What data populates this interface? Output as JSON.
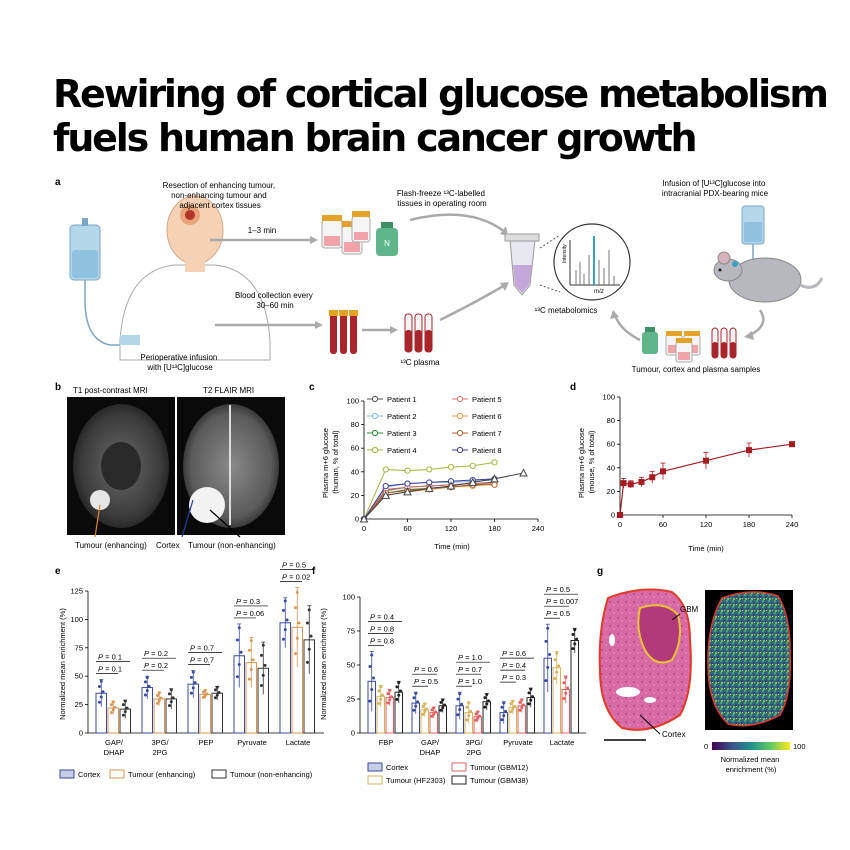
{
  "title": {
    "line1": "Rewiring of cortical glucose metabolism",
    "line2": "fuels human brain cancer growth"
  },
  "panel_a": {
    "letter": "a",
    "resection": [
      "Resection of enhancing tumour,",
      "non-enhancing tumour and",
      "adjacent cortex tissues"
    ],
    "time1": "1–3 min",
    "n2": "N",
    "flash": [
      "Flash-freeze ¹³C-labelled",
      "tissues in operating room"
    ],
    "blood": [
      "Blood collection every",
      "30–60 min"
    ],
    "plasma": "¹³C plasma",
    "metabolomics": "¹³C metabolomics",
    "intensity": "Intensity",
    "mz": "m/z",
    "infusion_mice": [
      "Infusion of [U¹³C]glucose into",
      "intracranial PDX-bearing mice"
    ],
    "periop": [
      "Perioperative infusion",
      "with [U¹³C]glucose"
    ],
    "samples": "Tumour, cortex and plasma samples",
    "colors": {
      "tube_cap": "#e3a22a",
      "blood": "#a8262b",
      "tissue_pink": "#f0a3a9",
      "bottle_green": "#5fb58a",
      "skin": "#f5d2b5",
      "bag_blue": "#b5d7ea"
    }
  },
  "panel_b": {
    "letter": "b",
    "mri1": "T1 post-contrast MRI",
    "mri2": "T2 FLAIR MRI",
    "lab_enh": "Tumour (enhancing)",
    "lab_cortex": "Cortex",
    "lab_non": "Tumour (non-enhancing)"
  },
  "panel_c": {
    "letter": "c",
    "ylabel": [
      "Plasma m+6 glucose",
      "(human, % of total)"
    ],
    "xlabel": "Time (min)",
    "yticks": [
      "0",
      "20",
      "40",
      "60",
      "80",
      "100"
    ],
    "xticks": [
      "0",
      "60",
      "120",
      "180",
      "240"
    ],
    "legend": [
      "Patient 1",
      "Patient 2",
      "Patient 3",
      "Patient 4",
      "Patient 5",
      "Patient 6",
      "Patient 7",
      "Patient 8"
    ]
  },
  "panel_d": {
    "letter": "d",
    "ylabel": [
      "Plasma m+6 glucose",
      "(mouse, % of total)"
    ],
    "xlabel": "Time (min)",
    "yticks": [
      "0",
      "20",
      "40",
      "60",
      "80",
      "100"
    ],
    "xticks": [
      "0",
      "60",
      "120",
      "180",
      "240"
    ]
  },
  "panel_e": {
    "letter": "e",
    "ylabel": "Normalized mean enrichment (%)",
    "yticks": [
      "0",
      "25",
      "50",
      "75",
      "100",
      "125"
    ],
    "categories": [
      "GAP/\nDHAP",
      "3PG/\n2PG",
      "PEP",
      "Pyruvate",
      "Lactate"
    ],
    "pvalues": [
      [
        "P = 0.1",
        "P = 0.1"
      ],
      [
        "P = 0.2",
        "P = 0.2"
      ],
      [
        "P = 0.7",
        "P = 0.7"
      ],
      [
        "P = 0.06",
        "P = 0.3"
      ],
      [
        "P = 0.02",
        "P = 0.5"
      ]
    ],
    "legend": [
      "Cortex",
      "Tumour (enhancing)",
      "Tumour (non-enhancing)"
    ]
  },
  "panel_f": {
    "letter": "f",
    "ylabel": "Normalized mean enrichment (%)",
    "yticks": [
      "0",
      "25",
      "50",
      "75",
      "100"
    ],
    "categories": [
      "FBP",
      "GAP/\nDHAP",
      "3PG/\n2PG",
      "Pyruvate",
      "Lactate"
    ],
    "pvalues": [
      [
        "P = 0.8",
        "P = 0.8",
        "P = 0.4"
      ],
      [
        "P = 0.5",
        "P = 0.6"
      ],
      [
        "P = 1.0",
        "P = 0.7",
        "P = 1.0"
      ],
      [
        "P = 0.3",
        "P = 0.4",
        "P = 0.6"
      ],
      [
        "P = 0.5",
        "P = 0.007",
        "P = 0.5"
      ]
    ],
    "legend": [
      "Cortex",
      "Tumour (GBM12)",
      "Tumour (HF2303)",
      "Tumour (GBM38)"
    ]
  },
  "panel_g": {
    "letter": "g",
    "gbm": "GBM",
    "cortex": "Cortex",
    "cb_min": "0",
    "cb_max": "100",
    "cb_label": [
      "Normalized mean",
      "enrichment (%)"
    ]
  },
  "chart_data": [
    {
      "type": "line",
      "panel": "c",
      "xlabel": "Time (min)",
      "ylabel": "Plasma m+6 glucose (human, % of total)",
      "xlim": [
        0,
        240
      ],
      "ylim": [
        0,
        100
      ],
      "series": [
        {
          "name": "Patient 1",
          "color": "#555555",
          "marker": "circle",
          "x": [
            0,
            30,
            60,
            90,
            120,
            150,
            180
          ],
          "y": [
            0,
            24,
            27,
            28,
            29,
            30,
            31
          ]
        },
        {
          "name": "Patient 2",
          "color": "#7fb8dc",
          "marker": "circle",
          "x": [
            0,
            30,
            60,
            90,
            120,
            150,
            180
          ],
          "y": [
            0,
            27,
            30,
            31,
            31,
            32,
            33
          ]
        },
        {
          "name": "Patient 3",
          "color": "#2e8b3e",
          "marker": "circle",
          "x": [
            0,
            30,
            60,
            90,
            120,
            150,
            180
          ],
          "y": [
            0,
            22,
            25,
            26,
            27,
            29,
            30
          ]
        },
        {
          "name": "Patient 4",
          "color": "#a7b43a",
          "marker": "circle",
          "x": [
            0,
            30,
            60,
            90,
            120,
            150,
            180
          ],
          "y": [
            0,
            42,
            41,
            42,
            44,
            45,
            48
          ]
        },
        {
          "name": "Patient 5",
          "color": "#d97070",
          "marker": "circle",
          "x": [
            0,
            30,
            60,
            90,
            120,
            150,
            180
          ],
          "y": [
            0,
            25,
            27,
            28,
            29,
            30,
            30
          ]
        },
        {
          "name": "Patient 6",
          "color": "#e39b4a",
          "marker": "circle",
          "x": [
            0,
            30,
            60,
            90,
            120,
            150,
            180
          ],
          "y": [
            0,
            20,
            23,
            25,
            27,
            28,
            30
          ]
        },
        {
          "name": "Patient 7",
          "color": "#b55e2a",
          "marker": "circle",
          "x": [
            0,
            30,
            60,
            90,
            120,
            150,
            180
          ],
          "y": [
            0,
            22,
            24,
            26,
            27,
            29,
            29
          ]
        },
        {
          "name": "Patient 8",
          "color": "#3b3f9a",
          "marker": "circle",
          "x": [
            0,
            30,
            60,
            90,
            120,
            150,
            180
          ],
          "y": [
            0,
            28,
            30,
            31,
            32,
            33,
            34
          ]
        },
        {
          "color": "#444444",
          "marker": "triangle",
          "x": [
            0,
            30,
            60,
            90,
            120,
            150,
            180,
            220
          ],
          "y": [
            0,
            20,
            23,
            26,
            28,
            31,
            34,
            39
          ]
        }
      ]
    },
    {
      "type": "line",
      "panel": "d",
      "xlabel": "Time (min)",
      "ylabel": "Plasma m+6 glucose (mouse, % of total)",
      "xlim": [
        0,
        240
      ],
      "ylim": [
        0,
        100
      ],
      "series": [
        {
          "color": "#a51c22",
          "marker": "square",
          "x": [
            0,
            5,
            15,
            30,
            45,
            60,
            120,
            180,
            240
          ],
          "y": [
            0,
            27,
            26,
            28,
            32,
            37,
            46,
            55,
            60
          ],
          "err": [
            0,
            4,
            3,
            4,
            5,
            7,
            7,
            6,
            2
          ]
        }
      ]
    },
    {
      "type": "bar",
      "panel": "e",
      "ylabel": "Normalized mean enrichment (%)",
      "ylim": [
        0,
        125
      ],
      "categories": [
        "GAP/DHAP",
        "3PG/2PG",
        "PEP",
        "Pyruvate",
        "Lactate"
      ],
      "series": [
        {
          "name": "Cortex",
          "color": "#3a4a9c",
          "values": [
            35,
            40,
            43,
            68,
            97
          ],
          "err": [
            12,
            10,
            12,
            28,
            22
          ]
        },
        {
          "name": "Tumour (enhancing)",
          "color": "#d99552",
          "values": [
            22,
            30,
            34,
            62,
            93
          ],
          "err": [
            6,
            6,
            4,
            22,
            35
          ]
        },
        {
          "name": "Tumour (non-enhancing)",
          "color": "#333333",
          "values": [
            21,
            30,
            35,
            57,
            82
          ],
          "err": [
            8,
            9,
            6,
            23,
            30
          ]
        }
      ]
    },
    {
      "type": "bar",
      "panel": "f",
      "ylabel": "Normalized mean enrichment (%)",
      "ylim": [
        0,
        100
      ],
      "categories": [
        "FBP",
        "GAP/DHAP",
        "3PG/2PG",
        "Pyruvate",
        "Lactate"
      ],
      "series": [
        {
          "name": "Cortex",
          "color": "#3a4a9c",
          "values": [
            38,
            22,
            20,
            15,
            55
          ],
          "err": [
            22,
            8,
            10,
            8,
            25
          ]
        },
        {
          "name": "Tumour (HF2303)",
          "color": "#d6b25c",
          "values": [
            27,
            17,
            15,
            19,
            48
          ],
          "err": [
            8,
            5,
            8,
            5,
            12
          ]
        },
        {
          "name": "Tumour (GBM12)",
          "color": "#e36060",
          "values": [
            26,
            15,
            12,
            20,
            32
          ],
          "err": [
            6,
            4,
            4,
            5,
            10
          ]
        },
        {
          "name": "Tumour (GBM38)",
          "color": "#222222",
          "values": [
            30,
            20,
            23,
            26,
            68
          ],
          "err": [
            8,
            5,
            6,
            7,
            9
          ]
        }
      ]
    }
  ]
}
